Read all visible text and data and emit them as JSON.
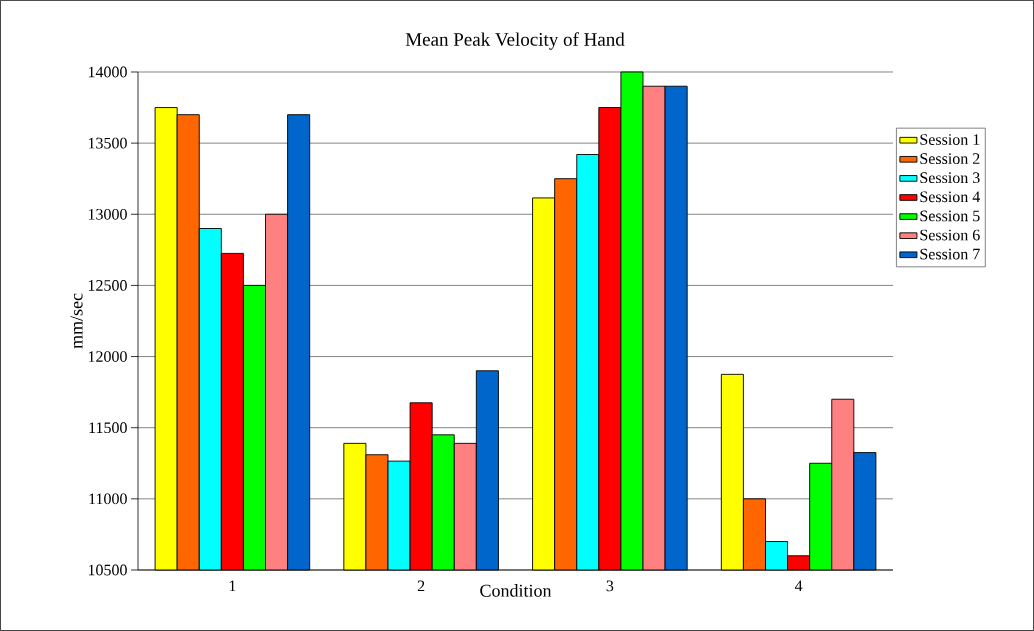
{
  "chart_data": {
    "type": "bar",
    "title": "Mean Peak Velocity of Hand",
    "xlabel": "Condition",
    "ylabel": "mm/sec",
    "categories": [
      "1",
      "2",
      "3",
      "4"
    ],
    "series": [
      {
        "name": "Session 1",
        "color": "#ffff00",
        "values": [
          13750,
          11390,
          13115,
          11875
        ]
      },
      {
        "name": "Session 2",
        "color": "#ff6600",
        "values": [
          13700,
          11310,
          13250,
          11000
        ]
      },
      {
        "name": "Session 3",
        "color": "#00ffff",
        "values": [
          12900,
          11265,
          13420,
          10700
        ]
      },
      {
        "name": "Session 4",
        "color": "#ff0000",
        "values": [
          12725,
          11675,
          13750,
          10600
        ]
      },
      {
        "name": "Session 5",
        "color": "#00ff00",
        "values": [
          12500,
          11450,
          14000,
          11250
        ]
      },
      {
        "name": "Session 6",
        "color": "#ff8080",
        "values": [
          13000,
          11390,
          13900,
          11700
        ]
      },
      {
        "name": "Session 7",
        "color": "#0066cc",
        "values": [
          13700,
          11900,
          13900,
          11325
        ]
      }
    ],
    "ylim": [
      10500,
      14000
    ],
    "yticks": [
      10500,
      11000,
      11500,
      12000,
      12500,
      13000,
      13500,
      14000
    ],
    "grid": "y",
    "legend": "right"
  }
}
